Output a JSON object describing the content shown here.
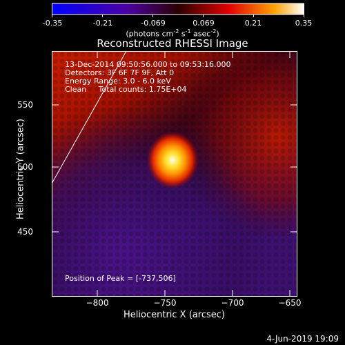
{
  "colorbar": {
    "ticks": [
      "-0.35",
      "-0.21",
      "-0.069",
      "0.069",
      "0.21",
      "0.35"
    ],
    "units_prefix": "(photons cm",
    "units_sup1": "-2",
    "units_mid1": " s",
    "units_sup2": "-1",
    "units_mid2": " asec",
    "units_sup3": "-2",
    "units_suffix": ")"
  },
  "title": "Reconstructed RHESSI Image",
  "info": {
    "time_range": "13-Dec-2014 09:50:56.000 to 09:53:16.000",
    "detectors": "Detectors: 3F 6F 7F 9F, Att 0",
    "energy": "Energy Range: 3.0 - 6.0 keV",
    "method": "Clean     Total counts: 1.75E+04",
    "peak": "Position of Peak = [-737,506]"
  },
  "axes": {
    "xlabel": "Heliocentric X (arcsec)",
    "ylabel": "Heliocentric Y (arcsec)",
    "xticks": [
      "−800",
      "−750",
      "−700",
      "−650"
    ],
    "yticks": [
      "550",
      "500",
      "450"
    ]
  },
  "footer": {
    "date": "4-Jun-2019 19:09"
  },
  "colors": {
    "background": "#000000",
    "axis": "#ffffff"
  }
}
